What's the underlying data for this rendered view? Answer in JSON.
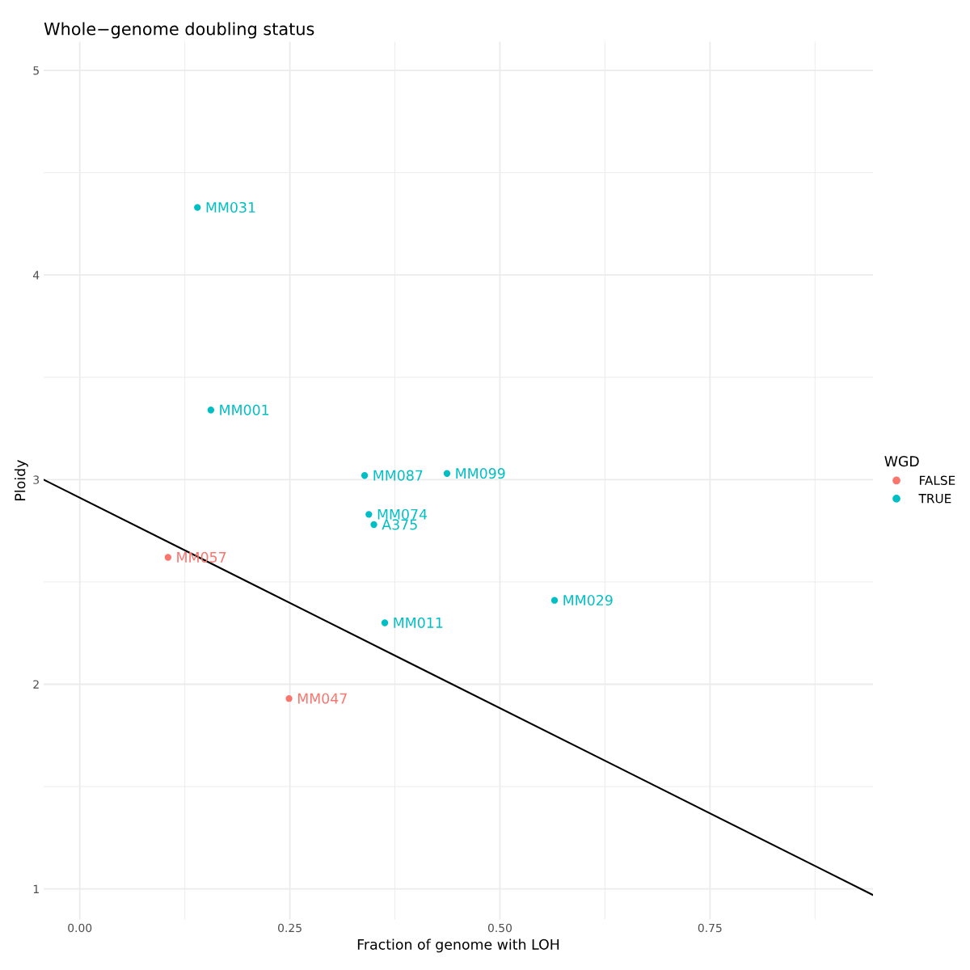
{
  "chart_data": {
    "type": "scatter",
    "title": "Whole−genome doubling status",
    "xlabel": "Fraction of genome with LOH",
    "ylabel": "Ploidy",
    "legend_title": "WGD",
    "series": [
      {
        "name": "FALSE",
        "color": "#f8766d",
        "x": [
          0.105,
          0.249
        ],
        "values": [
          2.62,
          1.93
        ],
        "value_labels": [
          "MM057",
          "MM047"
        ]
      },
      {
        "name": "TRUE",
        "color": "#00bfc4",
        "x": [
          0.14,
          0.156,
          0.339,
          0.437,
          0.344,
          0.35,
          0.565,
          0.363
        ],
        "values": [
          4.33,
          3.34,
          3.02,
          3.03,
          2.83,
          2.78,
          2.41,
          2.3
        ],
        "value_labels": [
          "MM031",
          "MM001",
          "MM087",
          "MM099",
          "MM074",
          "A375",
          "MM029",
          "MM011"
        ]
      },
      {
        "type": "line",
        "marker": "none",
        "color": "#000000",
        "x": [
          -0.043,
          0.944
        ],
        "values": [
          3.0,
          0.97
        ]
      }
    ],
    "xlim": [
      -0.043,
      0.944
    ],
    "ylim": [
      0.85,
      5.14
    ],
    "xticks": [
      {
        "value": 0,
        "label": "0.00"
      },
      {
        "value": 0.25,
        "label": "0.25"
      },
      {
        "value": 0.5,
        "label": "0.50"
      },
      {
        "value": 0.75,
        "label": "0.75"
      }
    ],
    "yticks": [
      1,
      2,
      3,
      4,
      5
    ],
    "grid": true,
    "legend": "right",
    "marker": "circle"
  }
}
